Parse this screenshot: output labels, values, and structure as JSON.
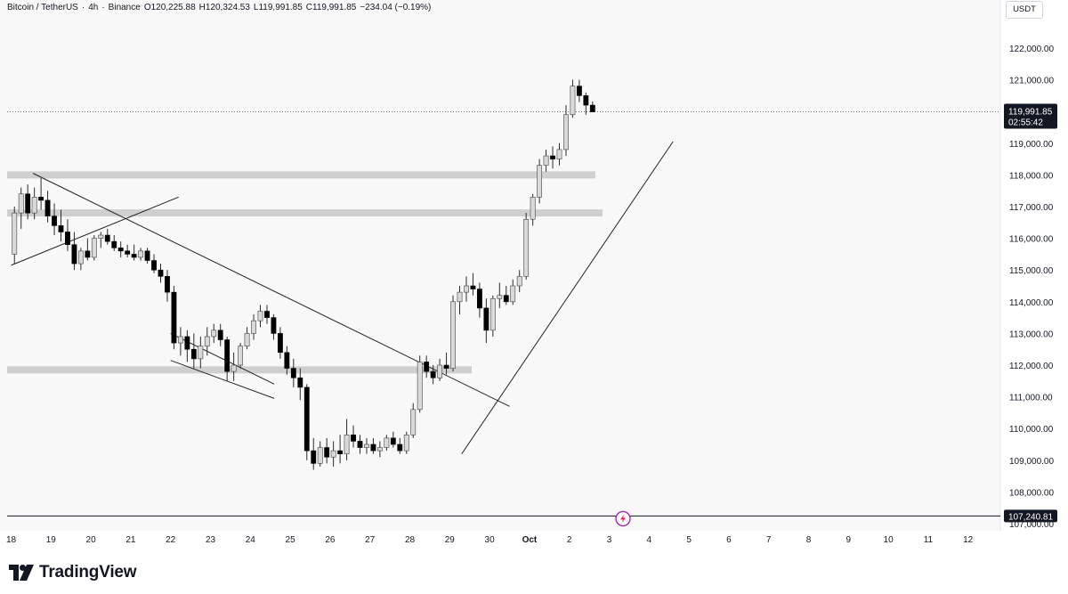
{
  "header": {
    "symbol": "Bitcoin / TetherUS",
    "interval": "4h",
    "exchange": "Binance",
    "open": "O120,225.88",
    "high": "H120,324.53",
    "low": "L119,991.85",
    "close": "C119,991.85",
    "change": "−234.04 (−0.19%)",
    "separator": "·"
  },
  "currency_label": "USDT",
  "price_badge": {
    "price": "119,991.85",
    "countdown": "02:55:42"
  },
  "low_line_badge": "107,240.81",
  "brand": {
    "name": "TradingView"
  },
  "chart_data": {
    "type": "candlestick",
    "title": "",
    "xlabel": "",
    "ylabel": "",
    "ylim": [
      107000,
      123000
    ],
    "x_ticks": [
      "18",
      "19",
      "20",
      "21",
      "22",
      "23",
      "24",
      "25",
      "26",
      "27",
      "28",
      "29",
      "30",
      "Oct",
      "2",
      "3",
      "4",
      "5",
      "6",
      "7",
      "8",
      "9",
      "10",
      "11",
      "12"
    ],
    "y_ticks": [
      "122,000.00",
      "121,000.00",
      "120,000.00",
      "119,000.00",
      "118,000.00",
      "117,000.00",
      "116,000.00",
      "115,000.00",
      "114,000.00",
      "113,000.00",
      "112,000.00",
      "111,000.00",
      "110,000.00",
      "109,000.00",
      "108,000.00",
      "107,000.00"
    ],
    "bars_per_day": 6,
    "start_index": 0.5,
    "candles": [
      [
        115.5,
        117.0,
        115.2,
        116.8
      ],
      [
        116.8,
        117.6,
        116.3,
        117.4
      ],
      [
        117.4,
        117.7,
        116.6,
        116.8
      ],
      [
        116.8,
        117.6,
        116.6,
        117.3
      ],
      [
        117.3,
        117.9,
        116.9,
        117.2
      ],
      [
        117.2,
        117.5,
        116.5,
        116.7
      ],
      [
        116.7,
        117.1,
        116.1,
        116.4
      ],
      [
        116.4,
        116.9,
        115.9,
        116.2
      ],
      [
        116.2,
        116.6,
        115.6,
        115.8
      ],
      [
        115.8,
        116.2,
        115.0,
        115.2
      ],
      [
        115.2,
        115.7,
        115.0,
        115.6
      ],
      [
        115.6,
        116.0,
        115.3,
        115.4
      ],
      [
        115.4,
        116.1,
        115.3,
        116.0
      ],
      [
        116.0,
        116.2,
        115.7,
        116.1
      ],
      [
        116.1,
        116.3,
        115.8,
        115.9
      ],
      [
        115.9,
        116.1,
        115.6,
        115.7
      ],
      [
        115.7,
        115.9,
        115.4,
        115.6
      ],
      [
        115.6,
        115.8,
        115.4,
        115.5
      ],
      [
        115.5,
        115.8,
        115.3,
        115.4
      ],
      [
        115.4,
        115.7,
        115.3,
        115.6
      ],
      [
        115.6,
        115.7,
        115.2,
        115.3
      ],
      [
        115.3,
        115.5,
        114.9,
        115.0
      ],
      [
        115.0,
        115.2,
        114.6,
        114.8
      ],
      [
        114.8,
        115.0,
        114.0,
        114.3
      ],
      [
        114.3,
        114.5,
        112.5,
        112.7
      ],
      [
        112.7,
        113.2,
        112.3,
        112.9
      ],
      [
        112.9,
        113.1,
        112.1,
        112.5
      ],
      [
        112.5,
        113.0,
        111.9,
        112.2
      ],
      [
        112.2,
        112.9,
        111.9,
        112.6
      ],
      [
        112.6,
        113.2,
        112.3,
        112.9
      ],
      [
        112.9,
        113.3,
        112.7,
        113.1
      ],
      [
        113.1,
        113.3,
        112.6,
        112.8
      ],
      [
        112.8,
        112.9,
        111.5,
        111.8
      ],
      [
        111.8,
        112.4,
        111.5,
        112.0
      ],
      [
        112.0,
        112.7,
        111.9,
        112.6
      ],
      [
        112.6,
        113.2,
        112.5,
        113.0
      ],
      [
        113.0,
        113.6,
        112.8,
        113.4
      ],
      [
        113.4,
        113.9,
        113.2,
        113.7
      ],
      [
        113.7,
        113.9,
        113.3,
        113.5
      ],
      [
        113.5,
        113.6,
        112.8,
        113.0
      ],
      [
        113.0,
        113.2,
        112.2,
        112.4
      ],
      [
        112.4,
        112.6,
        111.7,
        111.9
      ],
      [
        111.9,
        112.2,
        111.3,
        111.6
      ],
      [
        111.6,
        111.9,
        110.9,
        111.3
      ],
      [
        111.3,
        111.4,
        109.0,
        109.3
      ],
      [
        109.3,
        109.7,
        108.7,
        108.9
      ],
      [
        108.9,
        109.6,
        108.8,
        109.4
      ],
      [
        109.4,
        109.7,
        108.9,
        109.1
      ],
      [
        109.1,
        109.6,
        108.8,
        109.3
      ],
      [
        109.3,
        109.8,
        108.9,
        109.2
      ],
      [
        109.2,
        110.3,
        109.0,
        109.8
      ],
      [
        109.8,
        110.1,
        109.4,
        109.6
      ],
      [
        109.6,
        109.8,
        109.2,
        109.4
      ],
      [
        109.4,
        109.7,
        109.2,
        109.5
      ],
      [
        109.5,
        109.7,
        109.2,
        109.3
      ],
      [
        109.3,
        109.6,
        109.1,
        109.4
      ],
      [
        109.4,
        109.8,
        109.3,
        109.7
      ],
      [
        109.7,
        109.9,
        109.4,
        109.5
      ],
      [
        109.5,
        109.7,
        109.2,
        109.3
      ],
      [
        109.3,
        109.9,
        109.2,
        109.8
      ],
      [
        109.8,
        110.8,
        109.7,
        110.6
      ],
      [
        110.6,
        112.3,
        110.5,
        112.1
      ],
      [
        112.1,
        112.3,
        111.6,
        111.8
      ],
      [
        111.8,
        112.0,
        111.4,
        111.6
      ],
      [
        111.6,
        112.2,
        111.5,
        112.0
      ],
      [
        112.0,
        112.4,
        111.7,
        111.9
      ],
      [
        111.9,
        114.2,
        111.8,
        114.0
      ],
      [
        114.0,
        114.5,
        113.6,
        114.3
      ],
      [
        114.3,
        114.8,
        114.0,
        114.5
      ],
      [
        114.5,
        114.9,
        114.2,
        114.4
      ],
      [
        114.4,
        114.6,
        113.5,
        113.8
      ],
      [
        113.8,
        114.1,
        112.7,
        113.1
      ],
      [
        113.1,
        114.2,
        112.9,
        114.1
      ],
      [
        114.1,
        114.6,
        113.8,
        114.2
      ],
      [
        114.2,
        114.5,
        113.9,
        114.0
      ],
      [
        114.0,
        114.7,
        113.9,
        114.5
      ],
      [
        114.5,
        115.0,
        114.3,
        114.8
      ],
      [
        114.8,
        116.8,
        114.7,
        116.6
      ],
      [
        116.6,
        117.4,
        116.4,
        117.3
      ],
      [
        117.3,
        118.5,
        117.1,
        118.3
      ],
      [
        118.3,
        118.8,
        118.1,
        118.6
      ],
      [
        118.6,
        118.9,
        118.2,
        118.5
      ],
      [
        118.5,
        119.0,
        118.3,
        118.8
      ],
      [
        118.8,
        120.2,
        118.6,
        119.9
      ],
      [
        119.9,
        121.0,
        119.8,
        120.8
      ],
      [
        120.8,
        121.0,
        120.3,
        120.5
      ],
      [
        120.5,
        120.6,
        119.9,
        120.2
      ],
      [
        120.2,
        120.32,
        119.99,
        119.99
      ]
    ],
    "support_zones": [
      118000,
      116800,
      111850
    ],
    "reference_line": 107240.81,
    "trendlines": [
      {
        "x1": 0.55,
        "y1": 118050,
        "x2": 12.5,
        "y2": 110700
      },
      {
        "x1": 0.0,
        "y1": 115150,
        "x2": 4.2,
        "y2": 117300
      },
      {
        "x1": 4.0,
        "y1": 113000,
        "x2": 6.6,
        "y2": 111400
      },
      {
        "x1": 4.0,
        "y1": 112150,
        "x2": 6.6,
        "y2": 110950
      },
      {
        "x1": 11.3,
        "y1": 109200,
        "x2": 16.6,
        "y2": 119050
      }
    ]
  },
  "colors": {
    "up_body": "#d9d9d9",
    "down_body": "#000000",
    "wick": "#2a2a2a",
    "zone": "#cfcfcf",
    "grid_bg": "#f8f8f8",
    "axis_bg": "#ffffff",
    "badge_bg": "#131722",
    "badge_text": "#ffffff",
    "marker": "#9c27b0"
  },
  "icons": {
    "event_marker": "lightning-event-icon"
  }
}
